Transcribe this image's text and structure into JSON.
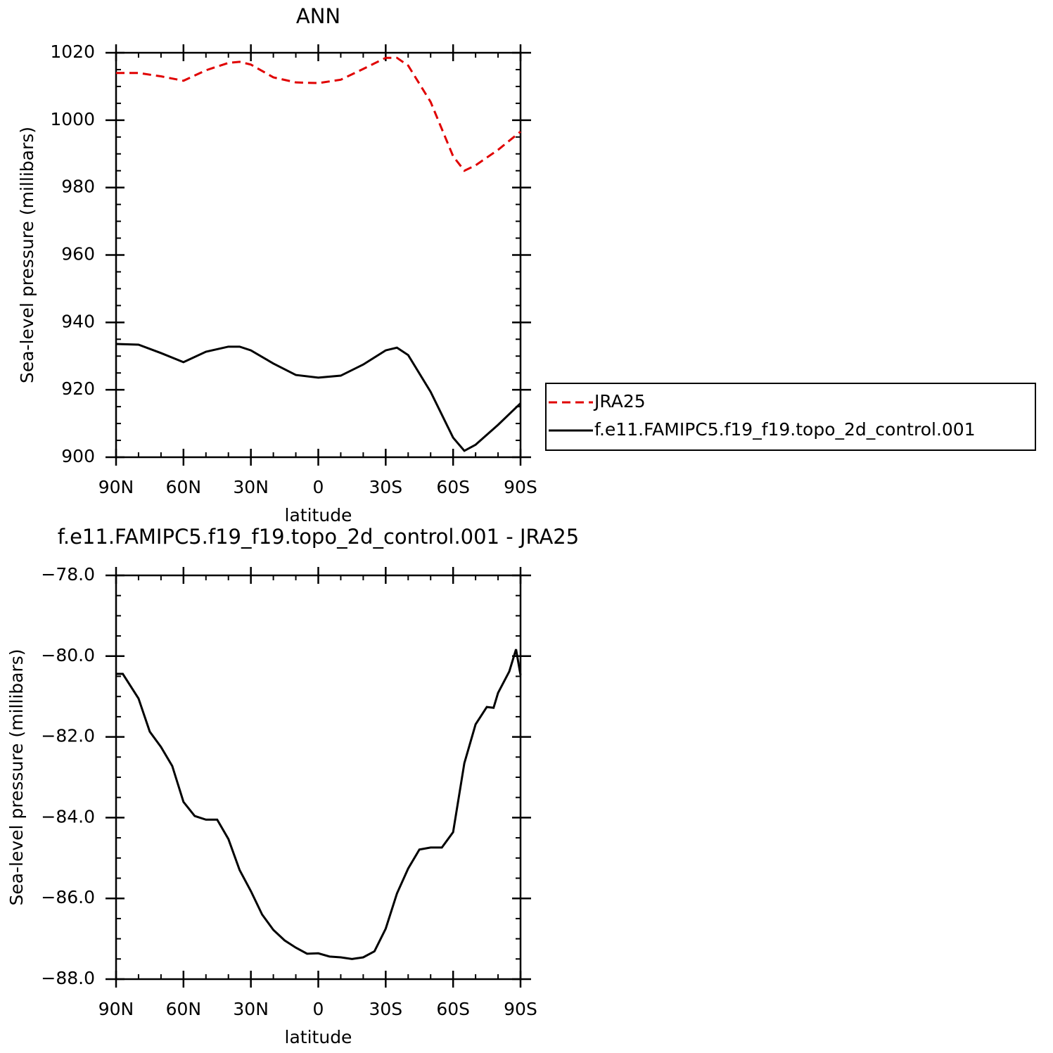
{
  "chart_data": [
    {
      "type": "line",
      "title": "ANN",
      "xlabel": "latitude",
      "ylabel": "Sea-level pressure (millibars)",
      "x": [
        90,
        80,
        70,
        60,
        50,
        40,
        35,
        30,
        20,
        10,
        0,
        -10,
        -20,
        -30,
        -35,
        -40,
        -50,
        -60,
        -65,
        -70,
        -80,
        -90
      ],
      "series": [
        {
          "name": "JRA25",
          "color": "#e00000",
          "dashed": true,
          "values": [
            1014,
            1014,
            1013,
            1011.7,
            1014.8,
            1017,
            1017.3,
            1016.5,
            1012.7,
            1011.2,
            1011,
            1012,
            1015.2,
            1018.5,
            1018.5,
            1016.2,
            1005.4,
            989.3,
            985,
            986.6,
            991.2,
            996.6
          ]
        },
        {
          "name": "f.e11.FAMIPC5.f19_f19.topo_2d_control.001",
          "color": "#000000",
          "dashed": false,
          "values": [
            933.6,
            933.4,
            930.9,
            928.2,
            931.3,
            932.8,
            932.8,
            931.7,
            927.8,
            924.4,
            923.6,
            924.2,
            927.5,
            931.7,
            932.5,
            930.3,
            919.4,
            905.8,
            901.9,
            903.7,
            909.6,
            916
          ]
        }
      ],
      "xlim": [
        90,
        -90
      ],
      "xticks": [
        {
          "value": 90,
          "label": "90N"
        },
        {
          "value": 60,
          "label": "60N"
        },
        {
          "value": 30,
          "label": "30N"
        },
        0,
        {
          "value": -30,
          "label": "30S"
        },
        {
          "value": -60,
          "label": "60S"
        },
        {
          "value": -90,
          "label": "90S"
        }
      ],
      "ylim": [
        900,
        1020
      ],
      "yticks": [
        900,
        920,
        940,
        960,
        980,
        1000,
        1020
      ],
      "legend": "outside-right"
    },
    {
      "type": "line",
      "title": "f.e11.FAMIPC5.f19_f19.topo_2d_control.001 - JRA25",
      "xlabel": "latitude",
      "ylabel": "Sea-level pressure (millibars)",
      "x": [
        90,
        87,
        80,
        75,
        70,
        65,
        60,
        55,
        50,
        45,
        40,
        35,
        30,
        25,
        20,
        15,
        10,
        5,
        0,
        -5,
        -10,
        -15,
        -20,
        -25,
        -30,
        -35,
        -40,
        -45,
        -50,
        -55,
        -60,
        -65,
        -70,
        -75,
        -78,
        -80,
        -85,
        -88,
        -90
      ],
      "values": [
        -80.44,
        -80.44,
        -81.05,
        -81.87,
        -82.25,
        -82.72,
        -83.61,
        -83.96,
        -84.05,
        -84.05,
        -84.53,
        -85.3,
        -85.82,
        -86.4,
        -86.78,
        -87.04,
        -87.22,
        -87.37,
        -87.36,
        -87.44,
        -87.46,
        -87.5,
        -87.46,
        -87.31,
        -86.75,
        -85.88,
        -85.26,
        -84.79,
        -84.74,
        -84.74,
        -84.36,
        -82.65,
        -81.69,
        -81.26,
        -81.28,
        -80.91,
        -80.38,
        -79.83,
        -80.47
      ],
      "color": "#000000",
      "xlim": [
        90,
        -90
      ],
      "xticks": [
        {
          "value": 90,
          "label": "90N"
        },
        {
          "value": 60,
          "label": "60N"
        },
        {
          "value": 30,
          "label": "30N"
        },
        0,
        {
          "value": -30,
          "label": "30S"
        },
        {
          "value": -60,
          "label": "60S"
        },
        {
          "value": -90,
          "label": "90S"
        }
      ],
      "ylim": [
        -88,
        -78
      ],
      "yticks": [
        {
          "value": -88,
          "label": "−88.0"
        },
        {
          "value": -86,
          "label": "−86.0"
        },
        {
          "value": -84,
          "label": "−84.0"
        },
        {
          "value": -82,
          "label": "−82.0"
        },
        {
          "value": -80,
          "label": "−80.0"
        },
        {
          "value": -78,
          "label": "−78.0"
        }
      ]
    }
  ]
}
